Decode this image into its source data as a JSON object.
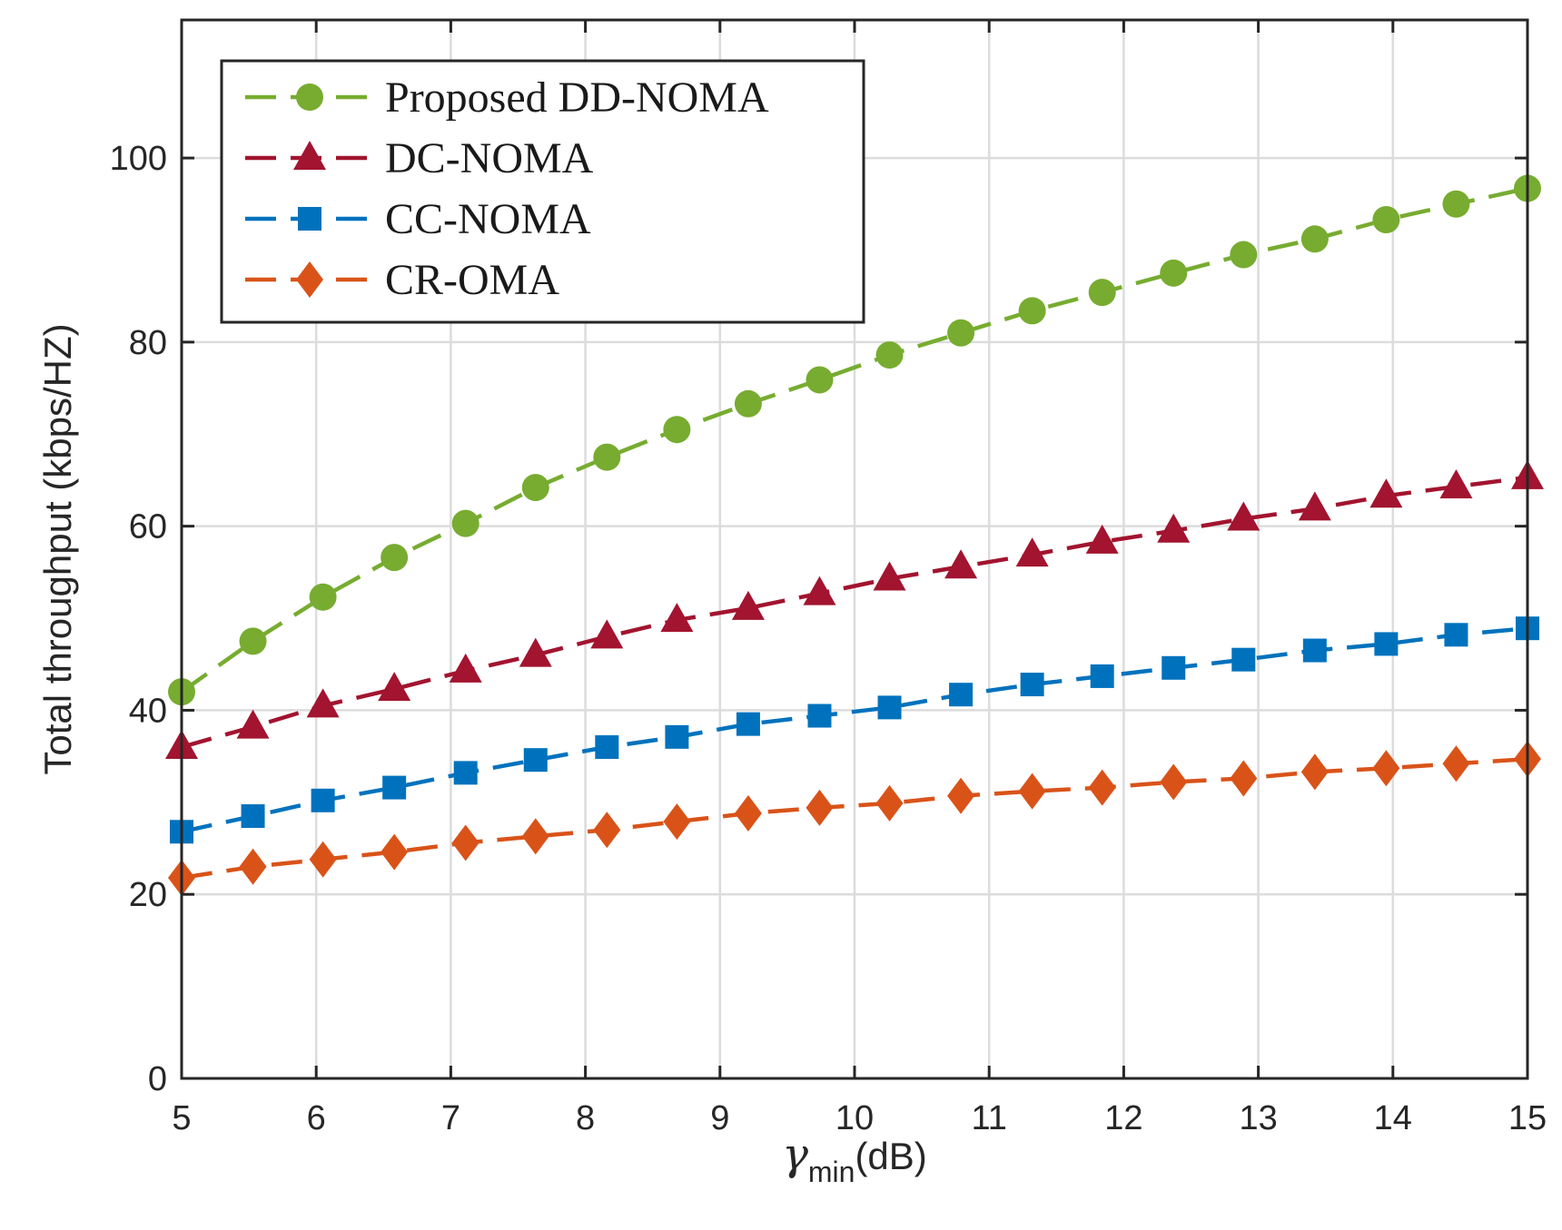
{
  "chart_data": {
    "type": "line",
    "title": "",
    "xlabel": "(dB)",
    "xlabel_symbol": "γ",
    "xlabel_subscript": "min",
    "ylabel": "Total throughput (kbps/HZ)",
    "xlim": [
      5,
      15
    ],
    "ylim": [
      0,
      115
    ],
    "xticks": [
      5,
      6,
      7,
      8,
      9,
      10,
      11,
      12,
      13,
      14,
      15
    ],
    "yticks": [
      0,
      20,
      40,
      60,
      80,
      100
    ],
    "grid": true,
    "legend_position": "top-left",
    "x": [
      5.0,
      5.53,
      6.05,
      6.58,
      7.11,
      7.63,
      8.16,
      8.68,
      9.21,
      9.74,
      10.26,
      10.79,
      11.32,
      11.84,
      12.37,
      12.89,
      13.42,
      13.95,
      14.47,
      15.0
    ],
    "series": [
      {
        "name": "Proposed DD-NOMA",
        "marker": "circle",
        "color": "#77ac30",
        "values": [
          42.0,
          47.5,
          52.3,
          56.6,
          60.3,
          64.2,
          67.5,
          70.5,
          73.3,
          75.9,
          78.6,
          81.0,
          83.4,
          85.4,
          87.5,
          89.5,
          91.2,
          93.3,
          95.0,
          96.7
        ]
      },
      {
        "name": "DC-NOMA",
        "marker": "triangle",
        "color": "#a2142f",
        "values": [
          36.0,
          38.2,
          40.5,
          42.3,
          44.3,
          46.0,
          48.0,
          49.8,
          51.1,
          52.7,
          54.3,
          55.6,
          56.9,
          58.3,
          59.5,
          60.8,
          61.9,
          63.3,
          64.3,
          65.3
        ]
      },
      {
        "name": "CC-NOMA",
        "marker": "square",
        "color": "#0072bd",
        "values": [
          26.8,
          28.5,
          30.2,
          31.6,
          33.2,
          34.6,
          36.0,
          37.1,
          38.5,
          39.4,
          40.3,
          41.7,
          42.8,
          43.7,
          44.6,
          45.5,
          46.5,
          47.2,
          48.2,
          48.9
        ]
      },
      {
        "name": "CR-OMA",
        "marker": "diamond",
        "color": "#d95319",
        "values": [
          21.8,
          23.0,
          23.8,
          24.6,
          25.6,
          26.3,
          27.0,
          27.9,
          28.8,
          29.4,
          29.9,
          30.7,
          31.2,
          31.6,
          32.2,
          32.6,
          33.3,
          33.7,
          34.2,
          34.7
        ]
      }
    ]
  }
}
